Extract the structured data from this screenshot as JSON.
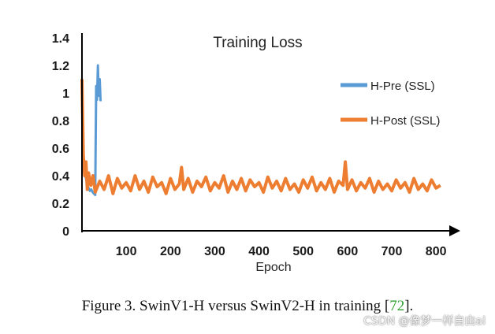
{
  "chart_data": {
    "type": "line",
    "title": "Training Loss",
    "xlabel": "Epoch",
    "ylabel": "",
    "xlim": [
      0,
      830
    ],
    "ylim": [
      0,
      1.4
    ],
    "xticks": [
      100,
      200,
      300,
      400,
      500,
      600,
      700,
      800
    ],
    "xtick_labels": [
      "100",
      "200",
      "300",
      "400",
      "500",
      "600",
      "700",
      "800"
    ],
    "yticks": [
      0,
      0.2,
      0.4,
      0.6,
      0.8,
      1.0,
      1.2,
      1.4
    ],
    "ytick_labels": [
      "0",
      "0.2",
      "0.4",
      "0.6",
      "0.8",
      "1",
      "1.2",
      "1.4"
    ],
    "legend_position": "upper-right",
    "series": [
      {
        "name": "H-Pre (SSL)",
        "color": "#5b9bd5",
        "x": [
          0,
          3,
          6,
          9,
          12,
          15,
          18,
          21,
          24,
          27,
          30,
          32,
          34,
          36,
          38,
          40,
          42
        ],
        "y": [
          1.1,
          0.55,
          0.42,
          0.38,
          0.33,
          0.31,
          0.29,
          0.3,
          0.28,
          0.27,
          0.26,
          1.05,
          0.95,
          1.2,
          0.98,
          1.1,
          0.94
        ]
      },
      {
        "name": "H-Post (SSL)",
        "color": "#ed7d31",
        "x": [
          0,
          3,
          6,
          9,
          12,
          15,
          20,
          25,
          30,
          40,
          50,
          60,
          70,
          80,
          90,
          100,
          110,
          120,
          130,
          140,
          150,
          160,
          170,
          180,
          190,
          200,
          210,
          220,
          225,
          230,
          240,
          250,
          260,
          270,
          280,
          290,
          300,
          310,
          320,
          330,
          340,
          350,
          360,
          370,
          380,
          390,
          400,
          410,
          420,
          430,
          440,
          450,
          460,
          470,
          480,
          490,
          500,
          510,
          520,
          530,
          540,
          550,
          560,
          570,
          580,
          590,
          595,
          600,
          610,
          620,
          630,
          640,
          650,
          660,
          670,
          680,
          690,
          700,
          710,
          720,
          730,
          740,
          750,
          760,
          770,
          780,
          790,
          800,
          810
        ],
        "y": [
          1.1,
          0.55,
          0.4,
          0.5,
          0.3,
          0.42,
          0.33,
          0.4,
          0.28,
          0.36,
          0.3,
          0.4,
          0.27,
          0.38,
          0.31,
          0.35,
          0.29,
          0.4,
          0.3,
          0.36,
          0.28,
          0.39,
          0.32,
          0.35,
          0.27,
          0.38,
          0.3,
          0.34,
          0.46,
          0.3,
          0.38,
          0.28,
          0.36,
          0.32,
          0.39,
          0.29,
          0.35,
          0.31,
          0.4,
          0.28,
          0.36,
          0.3,
          0.38,
          0.29,
          0.37,
          0.32,
          0.35,
          0.28,
          0.39,
          0.31,
          0.36,
          0.29,
          0.38,
          0.3,
          0.34,
          0.28,
          0.37,
          0.31,
          0.39,
          0.29,
          0.35,
          0.3,
          0.38,
          0.28,
          0.36,
          0.33,
          0.5,
          0.3,
          0.37,
          0.29,
          0.35,
          0.31,
          0.38,
          0.28,
          0.36,
          0.3,
          0.34,
          0.29,
          0.37,
          0.31,
          0.35,
          0.28,
          0.38,
          0.3,
          0.34,
          0.29,
          0.37,
          0.31,
          0.33
        ]
      }
    ]
  },
  "caption": {
    "text": "Figure 3. SwinV1-H versus SwinV2-H in training [",
    "ref": "72",
    "end": "]."
  },
  "watermark": "CSDN @像梦一样自由al"
}
